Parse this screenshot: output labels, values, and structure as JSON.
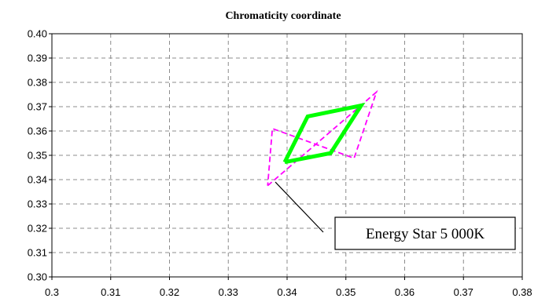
{
  "chart_data": {
    "type": "line",
    "title": "Chromaticity coordinate",
    "xlabel": "",
    "ylabel": "",
    "xlim": [
      0.3,
      0.38
    ],
    "ylim": [
      0.3,
      0.4
    ],
    "x_ticks": [
      "0.3",
      "0.31",
      "0.32",
      "0.33",
      "0.34",
      "0.35",
      "0.36",
      "0.37",
      "0.38"
    ],
    "y_ticks": [
      "0.30",
      "0.31",
      "0.32",
      "0.33",
      "0.34",
      "0.35",
      "0.36",
      "0.37",
      "0.38",
      "0.39",
      "0.40"
    ],
    "grid": true,
    "series": [
      {
        "color": "#ff00ff",
        "style": "dashed",
        "x": [
          0.3367,
          0.3552,
          0.3514,
          0.3375,
          0.3367
        ],
        "y": [
          0.3375,
          0.376,
          0.3488,
          0.361,
          0.3375
        ]
      },
      {
        "color": "#00ff00",
        "style": "solid",
        "x": [
          0.3396,
          0.3435,
          0.3526,
          0.3474,
          0.3396
        ],
        "y": [
          0.3472,
          0.366,
          0.3705,
          0.3509,
          0.3472
        ]
      }
    ],
    "annotations": [
      {
        "text": "Energy Star 5 000K",
        "points_to": {
          "x": 0.338,
          "y": 0.339
        }
      }
    ]
  }
}
